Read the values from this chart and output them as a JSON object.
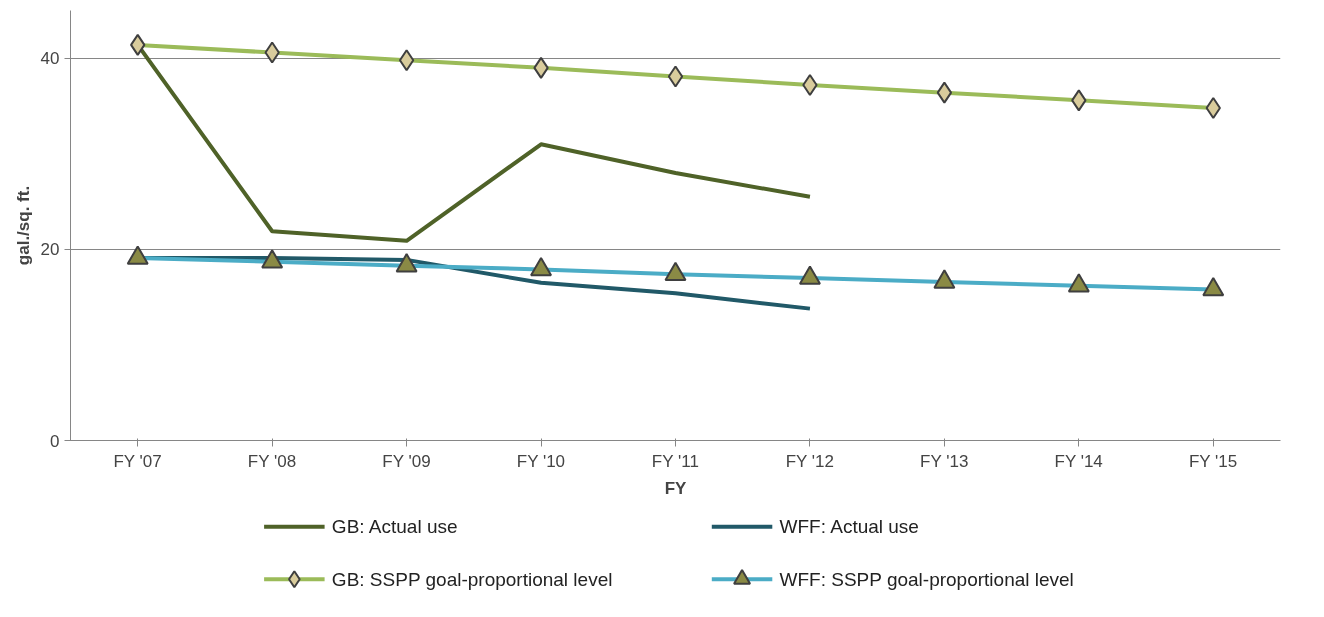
{
  "chart_data": {
    "type": "line",
    "xlabel": "FY",
    "ylabel": "gal./sq. ft.",
    "categories": [
      "FY '07",
      "FY '08",
      "FY '09",
      "FY '10",
      "FY '11",
      "FY '12",
      "FY '13",
      "FY '14",
      "FY '15"
    ],
    "series": [
      {
        "name": "GB: Actual use",
        "color": "#4f6228",
        "marker": "none",
        "values": [
          41.4,
          21.9,
          20.9,
          31.0,
          28.0,
          25.5,
          null,
          null,
          null
        ]
      },
      {
        "name": "WFF: Actual use",
        "color": "#215968",
        "marker": "none",
        "values": [
          19.1,
          19.1,
          18.9,
          16.5,
          15.4,
          13.8,
          null,
          null,
          null
        ]
      },
      {
        "name": "GB: SSPP goal-proportional level",
        "color": "#9bbb59",
        "marker": "diamond",
        "values": [
          41.4,
          40.6,
          39.8,
          39.0,
          38.1,
          37.2,
          36.4,
          35.6,
          34.8
        ]
      },
      {
        "name": "WFF: SSPP goal-proportional level",
        "color": "#4bacc6",
        "marker": "triangle",
        "values": [
          19.1,
          18.7,
          18.3,
          17.9,
          17.4,
          17.0,
          16.6,
          16.2,
          15.8
        ]
      }
    ],
    "ylim": [
      0,
      45
    ],
    "yticks": [
      0,
      20,
      40
    ],
    "grid": "y",
    "legend": "bottom",
    "line_style": "solid"
  }
}
